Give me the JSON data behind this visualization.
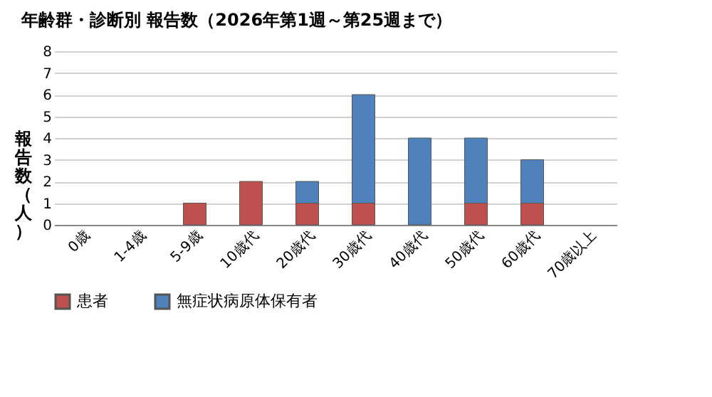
{
  "chart_data": {
    "type": "bar",
    "title": "年齢群・診断別 報告数（2026年第1週～第25週まで）",
    "ylabel": "報告数（人）",
    "categories": [
      "0歳",
      "1-4歳",
      "5-9歳",
      "10歳代",
      "20歳代",
      "30歳代",
      "40歳代",
      "50歳代",
      "60歳代",
      "70歳以上"
    ],
    "series": [
      {
        "name": "患者",
        "color": "#c0504d",
        "values": [
          0,
          0,
          1,
          2,
          1,
          1,
          0,
          1,
          1,
          0
        ]
      },
      {
        "name": "無症状病原体保有者",
        "color": "#4f81bd",
        "values": [
          0,
          0,
          0,
          0,
          1,
          5,
          4,
          3,
          2,
          0
        ]
      }
    ],
    "stacked": true,
    "ylim": [
      0,
      8
    ],
    "yticks": [
      0,
      1,
      2,
      3,
      4,
      5,
      6,
      7,
      8
    ],
    "grid": "y",
    "legend": "bottom"
  }
}
